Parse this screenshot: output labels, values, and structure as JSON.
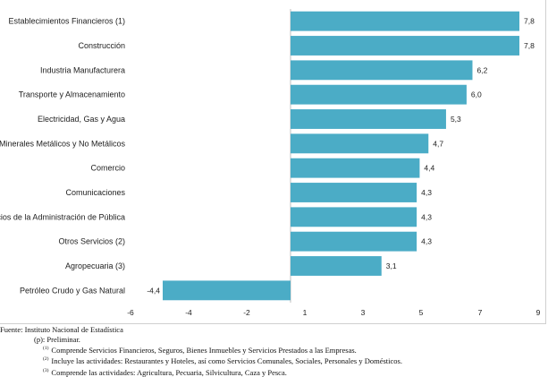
{
  "chart_data": {
    "type": "bar",
    "orientation": "horizontal",
    "categories": [
      "Establecimientos Financieros (1)",
      "Construcción",
      "Industria Manufacturera",
      "Transporte y Almacenamiento",
      "Electricidad, Gas y Agua",
      "Minerales Metálicos y No Metálicos",
      "Comercio",
      "Comunicaciones",
      "Servicios de la Administración de Pública",
      "Otros Servicios (2)",
      "Agropecuaria (3)",
      "Petróleo Crudo y Gas Natural"
    ],
    "values": [
      7.8,
      7.8,
      6.2,
      6.0,
      5.3,
      4.7,
      4.4,
      4.3,
      4.3,
      4.3,
      3.1,
      -4.4
    ],
    "value_labels": [
      "7,8",
      "7,8",
      "6,2",
      "6,0",
      "5,3",
      "4,7",
      "4,4",
      "4,3",
      "4,3",
      "4,3",
      "3,1",
      "-4,4"
    ],
    "xticks": [
      -6,
      -4,
      -2,
      1,
      3,
      5,
      7,
      9
    ],
    "xtick_labels": [
      "-6",
      "-4",
      "-2",
      "1",
      "3",
      "5",
      "7",
      "9"
    ],
    "bar_color": "#4bacc6",
    "grid": false
  },
  "notes": {
    "source": "Fuente: Instituto Nacional de Estadística",
    "p_note": "(p): Preliminar.",
    "n1_mark": "(1)",
    "n1": "Comprende Servicios Financieros, Seguros, Bienes Inmuebles y Servicios Prestados a las Empresas.",
    "n2_mark": "(2)",
    "n2": "Incluye las actividades: Restaurantes y Hoteles, así como Servicios Comunales, Sociales, Personales y Domésticos.",
    "n3_mark": "(3)",
    "n3": "Comprende las actividades: Agricultura, Pecuaria, Silvicultura, Caza y Pesca."
  }
}
